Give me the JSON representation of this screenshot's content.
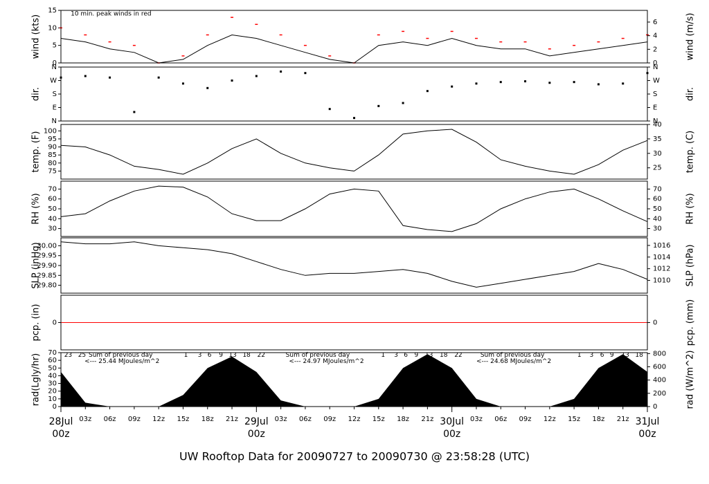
{
  "chart_data": [
    {
      "type": "line",
      "ylabel": "wind (kts)",
      "y2label": "wind (m/s)",
      "x": [
        0,
        3,
        6,
        9,
        12,
        15,
        18,
        21,
        24,
        27,
        30,
        33,
        36,
        39,
        42,
        45,
        48,
        51,
        54,
        57,
        60,
        63,
        66,
        69,
        72
      ],
      "xlim": [
        0,
        72
      ],
      "series": [
        {
          "name": "wind",
          "color": "#000000",
          "style": "line",
          "values": [
            7,
            6,
            4,
            3,
            0,
            1,
            5,
            8,
            7,
            5,
            3,
            1,
            0,
            5,
            6,
            5,
            7,
            5,
            4,
            4,
            2,
            3,
            4,
            5,
            6
          ]
        },
        {
          "name": "10 min. peak",
          "color": "#ff0000",
          "style": "dash",
          "values": [
            10,
            8,
            6,
            5,
            0,
            2,
            8,
            13,
            11,
            8,
            5,
            2,
            0,
            8,
            9,
            7,
            9,
            7,
            6,
            6,
            4,
            5,
            6,
            7,
            8
          ]
        }
      ],
      "ylim": [
        0,
        15
      ],
      "yticks": [
        0,
        5,
        10,
        15
      ],
      "y2lim": [
        0,
        7.72
      ],
      "y2ticks": [
        0,
        2,
        4,
        6
      ],
      "annotations": [
        {
          "text": "10 min. peak winds in red",
          "x": 1.2,
          "y": 14,
          "color": "#ff0000"
        }
      ]
    },
    {
      "type": "scatter",
      "ylabel": "dir.",
      "y2label": "dir.",
      "x": [
        0,
        3,
        6,
        9,
        12,
        15,
        18,
        21,
        24,
        27,
        30,
        33,
        36,
        39,
        42,
        45,
        48,
        51,
        54,
        57,
        60,
        63,
        66,
        69,
        72
      ],
      "xlim": [
        0,
        72
      ],
      "series": [
        {
          "name": "direction",
          "color": "#000000",
          "values": [
            290,
            300,
            290,
            60,
            290,
            250,
            220,
            270,
            300,
            330,
            320,
            80,
            20,
            100,
            120,
            200,
            230,
            250,
            260,
            265,
            255,
            260,
            245,
            250,
            320
          ]
        }
      ],
      "ylim": [
        0,
        360
      ],
      "yticks": [
        {
          "value": 0,
          "label": "N"
        },
        {
          "value": 90,
          "label": "E"
        },
        {
          "value": 180,
          "label": "S"
        },
        {
          "value": 270,
          "label": "W"
        },
        {
          "value": 360,
          "label": "N"
        }
      ],
      "y2lim": [
        0,
        360
      ],
      "y2ticks": [
        {
          "value": 0,
          "label": "N"
        },
        {
          "value": 90,
          "label": "E"
        },
        {
          "value": 180,
          "label": "S"
        },
        {
          "value": 270,
          "label": "W"
        },
        {
          "value": 360,
          "label": "N"
        }
      ]
    },
    {
      "type": "line",
      "ylabel": "temp. (F)",
      "y2label": "temp. (C)",
      "x": [
        0,
        3,
        6,
        9,
        12,
        15,
        18,
        21,
        24,
        27,
        30,
        33,
        36,
        39,
        42,
        45,
        48,
        51,
        54,
        57,
        60,
        63,
        66,
        69,
        72
      ],
      "xlim": [
        0,
        72
      ],
      "series": [
        {
          "name": "temperature",
          "color": "#000000",
          "style": "line",
          "values": [
            91,
            90,
            85,
            78,
            76,
            73,
            80,
            89,
            95,
            86,
            80,
            77,
            75,
            85,
            98,
            100,
            101,
            93,
            82,
            78,
            75,
            73,
            79,
            88,
            94
          ]
        }
      ],
      "ylim": [
        70,
        104
      ],
      "yticks": [
        75,
        80,
        85,
        90,
        95,
        100
      ],
      "y2lim": [
        21.1,
        40
      ],
      "y2ticks": [
        25,
        30,
        35,
        40
      ]
    },
    {
      "type": "line",
      "ylabel": "RH (%)",
      "y2label": "RH (%)",
      "x": [
        0,
        3,
        6,
        9,
        12,
        15,
        18,
        21,
        24,
        27,
        30,
        33,
        36,
        39,
        42,
        45,
        48,
        51,
        54,
        57,
        60,
        63,
        66,
        69,
        72
      ],
      "xlim": [
        0,
        72
      ],
      "series": [
        {
          "name": "relative humidity",
          "color": "#000000",
          "style": "line",
          "values": [
            42,
            45,
            58,
            68,
            73,
            72,
            62,
            45,
            38,
            38,
            50,
            65,
            70,
            68,
            33,
            29,
            27,
            35,
            50,
            60,
            67,
            70,
            60,
            48,
            37
          ]
        }
      ],
      "ylim": [
        22,
        78
      ],
      "yticks": [
        30,
        40,
        50,
        60,
        70
      ],
      "y2lim": [
        22,
        78
      ],
      "y2ticks": [
        30,
        40,
        50,
        60,
        70
      ]
    },
    {
      "type": "line",
      "ylabel": "SLP (inHg)",
      "y2label": "SLP (hPa)",
      "x": [
        0,
        3,
        6,
        9,
        12,
        15,
        18,
        21,
        24,
        27,
        30,
        33,
        36,
        39,
        42,
        45,
        48,
        51,
        54,
        57,
        60,
        63,
        66,
        69,
        72
      ],
      "xlim": [
        0,
        72
      ],
      "series": [
        {
          "name": "sea level pressure",
          "color": "#000000",
          "style": "line",
          "values": [
            30.02,
            30.01,
            30.01,
            30.02,
            30.0,
            29.99,
            29.98,
            29.96,
            29.92,
            29.88,
            29.85,
            29.86,
            29.86,
            29.87,
            29.88,
            29.86,
            29.82,
            29.79,
            29.81,
            29.83,
            29.85,
            29.87,
            29.91,
            29.88,
            29.83
          ]
        }
      ],
      "ylim": [
        29.76,
        30.04
      ],
      "yticks": [
        {
          "value": 29.8,
          "label": "29.80"
        },
        29.85,
        {
          "value": 29.9,
          "label": "29.90"
        },
        29.95,
        {
          "value": 30,
          "label": "30.00"
        }
      ],
      "y2lim": [
        1007.8,
        1017.3
      ],
      "y2ticks": [
        1010,
        1012,
        1014,
        1016
      ]
    },
    {
      "type": "line",
      "ylabel": "pcp. (in)",
      "y2label": "pcp. (mm)",
      "x": [
        0,
        3,
        6,
        9,
        12,
        15,
        18,
        21,
        24,
        27,
        30,
        33,
        36,
        39,
        42,
        45,
        48,
        51,
        54,
        57,
        60,
        63,
        66,
        69,
        72
      ],
      "xlim": [
        0,
        72
      ],
      "series": [
        {
          "name": "precipitation",
          "color": "#ff0000",
          "style": "line",
          "values": [
            0,
            0,
            0,
            0,
            0,
            0,
            0,
            0,
            0,
            0,
            0,
            0,
            0,
            0,
            0,
            0,
            0,
            0,
            0,
            0,
            0,
            0,
            0,
            0,
            0
          ]
        }
      ],
      "ylim": [
        -1,
        1
      ],
      "yticks": [
        0
      ],
      "y2lim": [
        -1,
        1
      ],
      "y2ticks": [
        0
      ]
    },
    {
      "type": "area",
      "ylabel": "rad(Lgly/hr)",
      "y2label": "rad (W/m^2)",
      "title": "UW Rooftop Data for 20090727  to  20090730 @ 23:58:28  (UTC)",
      "x": [
        0,
        3,
        6,
        9,
        12,
        15,
        18,
        21,
        24,
        27,
        30,
        33,
        36,
        39,
        42,
        45,
        48,
        51,
        54,
        57,
        60,
        63,
        66,
        69,
        72
      ],
      "xlim": [
        0,
        72
      ],
      "series": [
        {
          "name": "radiation",
          "color": "#000000",
          "values": [
            45,
            5,
            0,
            0,
            0,
            15,
            50,
            65,
            45,
            8,
            0,
            0,
            0,
            10,
            50,
            68,
            50,
            10,
            0,
            0,
            0,
            10,
            50,
            68,
            45
          ]
        }
      ],
      "ylim": [
        0,
        70
      ],
      "yticks": [
        0,
        10,
        20,
        30,
        40,
        50,
        60,
        70
      ],
      "y2lim": [
        0,
        814
      ],
      "y2ticks": [
        0,
        200,
        400,
        600,
        800
      ],
      "xticks": [
        {
          "value": 0,
          "label": "00z"
        },
        {
          "value": 3,
          "label": "03z"
        },
        {
          "value": 6,
          "label": "06z"
        },
        {
          "value": 9,
          "label": "09z"
        },
        {
          "value": 12,
          "label": "12z"
        },
        {
          "value": 15,
          "label": "15z"
        },
        {
          "value": 18,
          "label": "18z"
        },
        {
          "value": 21,
          "label": "21z"
        },
        {
          "value": 24,
          "label": "00z"
        },
        {
          "value": 27,
          "label": "03z"
        },
        {
          "value": 30,
          "label": "06z"
        },
        {
          "value": 33,
          "label": "09z"
        },
        {
          "value": 36,
          "label": "12z"
        },
        {
          "value": 39,
          "label": "15z"
        },
        {
          "value": 42,
          "label": "18z"
        },
        {
          "value": 45,
          "label": "21z"
        },
        {
          "value": 48,
          "label": "00z"
        },
        {
          "value": 51,
          "label": "03z"
        },
        {
          "value": 54,
          "label": "06z"
        },
        {
          "value": 57,
          "label": "09z"
        },
        {
          "value": 60,
          "label": "12z"
        },
        {
          "value": 63,
          "label": "15z"
        },
        {
          "value": 66,
          "label": "18z"
        },
        {
          "value": 69,
          "label": "21z"
        },
        {
          "value": 72,
          "label": "00z"
        }
      ],
      "dates": [
        {
          "value": 0,
          "label": "28Jul"
        },
        {
          "value": 24,
          "label": "29Jul"
        },
        {
          "value": 48,
          "label": "30Jul"
        },
        {
          "value": 72,
          "label": "31Jul"
        }
      ],
      "annotations": [
        {
          "text": "23",
          "x": 0.4,
          "y": 67,
          "color": "#9900cc"
        },
        {
          "text": "25",
          "x": 2.1,
          "y": 67,
          "color": "#9900cc"
        },
        {
          "text": "Sum of previous day",
          "x": 3.4,
          "y": 67,
          "color": "#9900cc"
        },
        {
          "text": "<--- 25.44 MJoules/m^2",
          "x": 2.9,
          "y": 59,
          "color": "#9900cc"
        },
        {
          "text": "1",
          "x": 15.1,
          "y": 67,
          "color": "#9900cc"
        },
        {
          "text": "3",
          "x": 16.8,
          "y": 67,
          "color": "#9900cc"
        },
        {
          "text": "6",
          "x": 18.0,
          "y": 67,
          "color": "#9900cc"
        },
        {
          "text": "9",
          "x": 19.4,
          "y": 67,
          "color": "#9900cc"
        },
        {
          "text": "13",
          "x": 20.6,
          "y": 67,
          "color": "#9900cc"
        },
        {
          "text": "18",
          "x": 22.3,
          "y": 67,
          "color": "#9900cc"
        },
        {
          "text": "22",
          "x": 24.1,
          "y": 67,
          "color": "#9900cc"
        },
        {
          "text": "Sum of previous day",
          "x": 27.6,
          "y": 67,
          "color": "#9900cc"
        },
        {
          "text": "<--- 24.97 MJoules/m^2",
          "x": 28.0,
          "y": 59,
          "color": "#9900cc"
        },
        {
          "text": "1",
          "x": 39.3,
          "y": 67,
          "color": "#9900cc"
        },
        {
          "text": "3",
          "x": 40.9,
          "y": 67,
          "color": "#9900cc"
        },
        {
          "text": "6",
          "x": 42.1,
          "y": 67,
          "color": "#9900cc"
        },
        {
          "text": "9",
          "x": 43.4,
          "y": 67,
          "color": "#9900cc"
        },
        {
          "text": "13",
          "x": 44.7,
          "y": 67,
          "color": "#9900cc"
        },
        {
          "text": "18",
          "x": 46.5,
          "y": 67,
          "color": "#9900cc"
        },
        {
          "text": "22",
          "x": 48.3,
          "y": 67,
          "color": "#9900cc"
        },
        {
          "text": "Sum of previous day",
          "x": 51.5,
          "y": 67,
          "color": "#9900cc"
        },
        {
          "text": "<--- 24.68 MJoules/m^2",
          "x": 51.0,
          "y": 59,
          "color": "#9900cc"
        },
        {
          "text": "1",
          "x": 63.4,
          "y": 67,
          "color": "#9900cc"
        },
        {
          "text": "3",
          "x": 64.9,
          "y": 67,
          "color": "#9900cc"
        },
        {
          "text": "6",
          "x": 66.2,
          "y": 67,
          "color": "#9900cc"
        },
        {
          "text": "9",
          "x": 67.4,
          "y": 67,
          "color": "#9900cc"
        },
        {
          "text": "13",
          "x": 68.8,
          "y": 67,
          "color": "#9900cc"
        },
        {
          "text": "18",
          "x": 70.5,
          "y": 67,
          "color": "#9900cc"
        }
      ]
    }
  ]
}
